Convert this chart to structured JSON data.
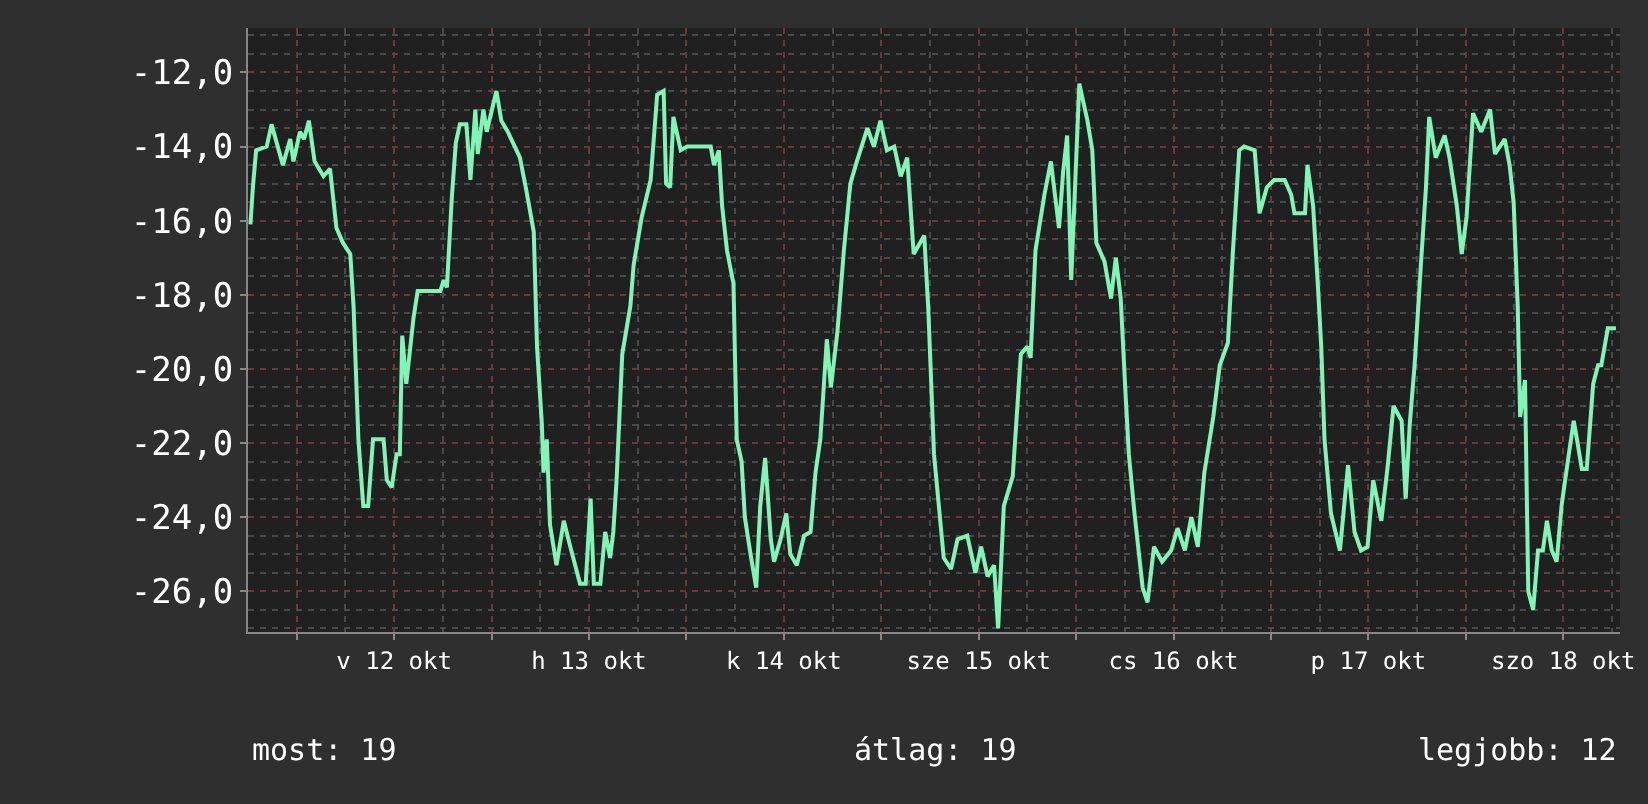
{
  "chart_data": {
    "type": "line",
    "x": [
      "--10-11T18:18",
      "--10-11T18:36",
      "--10-11T19:00",
      "--10-11T20:18",
      "--10-11T20:54",
      "--10-11T22:18",
      "--10-11T23:12",
      "--10-11T23:36",
      "--10-12T00:24",
      "--10-12T00:54",
      "--10-12T01:30",
      "--10-12T02:12",
      "--10-12T03:18",
      "--10-12T04:06",
      "--10-12T04:54",
      "--10-12T05:42",
      "--10-12T06:36",
      "--10-12T07:00",
      "--10-12T07:36",
      "--10-12T08:12",
      "--10-12T08:48",
      "--10-12T09:24",
      "--10-12T10:42",
      "--10-12T11:06",
      "--10-12T11:42",
      "--10-12T12:18",
      "--10-12T12:42",
      "--10-12T13:00",
      "--10-12T13:30",
      "--10-12T14:24",
      "--10-12T14:54",
      "--10-12T17:42",
      "--10-12T18:06",
      "--10-12T18:30",
      "--10-12T19:06",
      "--10-12T19:36",
      "--10-12T20:06",
      "--10-12T20:54",
      "--10-12T21:24",
      "--10-12T22:00",
      "--10-12T22:18",
      "--10-12T23:00",
      "--10-12T23:24",
      "--10-13T00:36",
      "--10-13T01:12",
      "--10-13T02:00",
      "--10-13T03:30",
      "--10-13T04:18",
      "--10-13T05:12",
      "--10-13T05:36",
      "--10-13T06:12",
      "--10-13T06:24",
      "--10-13T06:48",
      "--10-13T07:12",
      "--10-13T08:00",
      "--10-13T08:54",
      "--10-13T09:42",
      "--10-13T10:54",
      "--10-13T11:36",
      "--10-13T12:12",
      "--10-13T12:36",
      "--10-13T13:24",
      "--10-13T14:00",
      "--10-13T14:36",
      "--10-13T15:00",
      "--10-13T15:24",
      "--10-13T16:06",
      "--10-13T17:06",
      "--10-13T17:30",
      "--10-13T18:30",
      "--10-13T19:36",
      "--10-13T20:24",
      "--10-13T21:12",
      "--10-13T21:30",
      "--10-13T22:00",
      "--10-13T22:24",
      "--10-13T23:18",
      "--10-14T00:06",
      "--10-14T03:00",
      "--10-14T03:24",
      "--10-14T04:00",
      "--10-14T04:24",
      "--10-14T05:00",
      "--10-14T05:48",
      "--10-14T06:12",
      "--10-14T06:48",
      "--10-14T07:12",
      "--10-14T07:54",
      "--10-14T08:36",
      "--10-14T09:06",
      "--10-14T09:42",
      "--10-14T10:24",
      "--10-14T10:48",
      "--10-14T11:36",
      "--10-14T12:18",
      "--10-14T12:48",
      "--10-14T13:36",
      "--10-14T14:30",
      "--10-14T15:18",
      "--10-14T15:54",
      "--10-14T16:30",
      "--10-14T17:18",
      "--10-14T17:48",
      "--10-14T18:36",
      "--10-14T19:24",
      "--10-14T20:12",
      "--10-14T21:00",
      "--10-14T22:18",
      "--10-14T23:06",
      "--10-14T23:54",
      "--10-15T00:42",
      "--10-15T01:36",
      "--10-15T02:24",
      "--10-15T03:12",
      "--10-15T04:00",
      "--10-15T05:18",
      "--10-15T05:48",
      "--10-15T06:30",
      "--10-15T07:42",
      "--10-15T08:36",
      "--10-15T09:24",
      "--10-15T10:36",
      "--10-15T11:36",
      "--10-15T12:18",
      "--10-15T13:06",
      "--10-15T13:54",
      "--10-15T14:24",
      "--10-15T15:06",
      "--10-15T16:12",
      "--10-15T17:12",
      "--10-15T18:00",
      "--10-15T18:24",
      "--10-15T19:00",
      "--10-15T20:06",
      "--10-15T20:54",
      "--10-15T21:54",
      "--10-15T22:24",
      "--10-15T22:54",
      "--10-15T23:24",
      "--10-16T00:24",
      "--10-16T01:24",
      "--10-16T02:00",
      "--10-16T02:30",
      "--10-16T03:30",
      "--10-16T04:18",
      "--10-16T04:54",
      "--10-16T05:30",
      "--10-16T06:06",
      "--10-16T06:30",
      "--10-16T07:12",
      "--10-16T08:12",
      "--10-16T08:48",
      "--10-16T09:36",
      "--10-16T10:36",
      "--10-16T11:42",
      "--10-16T12:30",
      "--10-16T13:24",
      "--10-16T14:12",
      "--10-16T15:00",
      "--10-16T15:48",
      "--10-16T16:54",
      "--10-16T17:42",
      "--10-16T18:42",
      "--10-16T19:18",
      "--10-16T20:06",
      "--10-16T20:42",
      "--10-16T22:00",
      "--10-16T22:36",
      "--10-16T23:30",
      "--10-17T00:24",
      "--10-17T01:42",
      "--10-17T02:30",
      "--10-17T02:54",
      "--10-17T04:12",
      "--10-17T04:30",
      "--10-17T05:12",
      "--10-17T05:48",
      "--10-17T06:12",
      "--10-17T06:36",
      "--10-17T07:24",
      "--10-17T08:30",
      "--10-17T09:30",
      "--10-17T10:18",
      "--10-17T11:06",
      "--10-17T11:54",
      "--10-17T12:36",
      "--10-17T13:36",
      "--10-17T14:24",
      "--10-17T15:06",
      "--10-17T16:06",
      "--10-17T16:36",
      "--10-17T17:06",
      "--10-17T17:42",
      "--10-17T18:30",
      "--10-17T19:06",
      "--10-17T19:30",
      "--10-17T20:18",
      "--10-17T21:24",
      "--10-17T22:00",
      "--10-17T22:54",
      "--10-17T23:30",
      "--10-18T00:06",
      "--10-18T00:54",
      "--10-18T01:54",
      "--10-18T03:00",
      "--10-18T03:36",
      "--10-18T04:48",
      "--10-18T05:24",
      "--10-18T05:54",
      "--10-18T06:24",
      "--10-18T06:42",
      "--10-18T07:18",
      "--10-18T07:42",
      "--10-18T08:18",
      "--10-18T08:54",
      "--10-18T09:30",
      "--10-18T10:00",
      "--10-18T10:36",
      "--10-18T11:12",
      "--10-18T11:48",
      "--10-18T12:30",
      "--10-18T13:18",
      "--10-18T13:42",
      "--10-18T14:18",
      "--10-18T14:54",
      "--10-18T15:42",
      "--10-18T16:18",
      "--10-18T16:42",
      "--10-18T17:30",
      "--10-18T18:30"
    ],
    "series": [
      {
        "color": "#80f5b5",
        "values": [
          -16.1,
          -15.1,
          -14.1,
          -14.0,
          -13.4,
          -14.5,
          -13.8,
          -14.4,
          -13.6,
          -13.8,
          -13.3,
          -14.4,
          -14.8,
          -14.6,
          -16.2,
          -16.6,
          -16.9,
          -18.3,
          -21.9,
          -23.7,
          -23.7,
          -21.9,
          -21.9,
          -23.0,
          -23.2,
          -22.3,
          -22.3,
          -19.1,
          -20.4,
          -18.6,
          -17.9,
          -17.9,
          -17.6,
          -17.8,
          -15.4,
          -13.9,
          -13.4,
          -13.4,
          -14.9,
          -13.0,
          -14.2,
          -13.0,
          -13.6,
          -12.5,
          -13.3,
          -13.6,
          -14.3,
          -15.2,
          -16.3,
          -19.4,
          -21.5,
          -22.8,
          -21.9,
          -24.2,
          -25.3,
          -24.1,
          -24.8,
          -25.8,
          -25.8,
          -23.5,
          -25.8,
          -25.8,
          -24.4,
          -25.1,
          -24.4,
          -23.0,
          -19.6,
          -18.3,
          -17.2,
          -15.9,
          -14.9,
          -12.6,
          -12.5,
          -15.0,
          -15.1,
          -13.2,
          -14.1,
          -14.0,
          -14.0,
          -14.5,
          -14.1,
          -15.6,
          -16.8,
          -17.7,
          -21.9,
          -22.5,
          -24.0,
          -25.0,
          -25.9,
          -23.7,
          -22.4,
          -24.6,
          -25.2,
          -24.6,
          -23.9,
          -25.0,
          -25.3,
          -24.5,
          -24.4,
          -22.8,
          -21.9,
          -19.2,
          -20.5,
          -19.0,
          -16.8,
          -15.0,
          -14.4,
          -13.5,
          -14.0,
          -13.3,
          -14.1,
          -14.0,
          -14.8,
          -14.3,
          -16.9,
          -16.4,
          -18.4,
          -22.3,
          -25.1,
          -25.4,
          -24.6,
          -24.5,
          -25.5,
          -24.8,
          -25.6,
          -25.3,
          -27.0,
          -23.7,
          -22.9,
          -19.6,
          -19.4,
          -19.7,
          -16.8,
          -15.3,
          -14.4,
          -16.2,
          -14.7,
          -13.7,
          -17.6,
          -12.3,
          -13.3,
          -14.1,
          -16.6,
          -17.1,
          -18.1,
          -17.0,
          -18.1,
          -20.7,
          -22.3,
          -23.9,
          -25.9,
          -26.3,
          -24.8,
          -25.2,
          -24.9,
          -24.3,
          -24.9,
          -24.0,
          -24.8,
          -22.8,
          -21.3,
          -19.9,
          -19.3,
          -16.9,
          -14.1,
          -14.0,
          -14.1,
          -15.8,
          -15.1,
          -14.9,
          -14.9,
          -15.3,
          -15.8,
          -15.8,
          -14.5,
          -15.6,
          -17.8,
          -19.4,
          -21.9,
          -23.9,
          -24.9,
          -22.6,
          -24.4,
          -24.9,
          -24.8,
          -23.0,
          -24.1,
          -22.6,
          -21.0,
          -21.4,
          -23.5,
          -21.5,
          -19.9,
          -17.1,
          -15.1,
          -13.2,
          -14.3,
          -13.7,
          -14.3,
          -15.6,
          -16.9,
          -15.9,
          -13.1,
          -13.6,
          -13.0,
          -14.2,
          -13.8,
          -14.5,
          -15.5,
          -18.3,
          -21.3,
          -20.3,
          -26.0,
          -26.5,
          -24.9,
          -24.9,
          -24.1,
          -24.9,
          -25.2,
          -23.7,
          -22.6,
          -21.4,
          -21.9,
          -22.7,
          -22.7,
          -20.4,
          -19.9,
          -19.9,
          -18.9,
          -18.9
        ]
      }
    ],
    "xlim": [
      "--10-11T18:00",
      "--10-18T19:00"
    ],
    "xticks": [
      {
        "value": "--10-12T00:00",
        "label": null
      },
      {
        "value": "--10-12T12:00",
        "label": "v 12 okt"
      },
      {
        "value": "--10-13T00:00",
        "label": null
      },
      {
        "value": "--10-13T12:00",
        "label": "h 13 okt"
      },
      {
        "value": "--10-14T00:00",
        "label": null
      },
      {
        "value": "--10-14T12:00",
        "label": "k 14 okt"
      },
      {
        "value": "--10-15T00:00",
        "label": null
      },
      {
        "value": "--10-15T12:00",
        "label": "sze 15 okt"
      },
      {
        "value": "--10-16T00:00",
        "label": null
      },
      {
        "value": "--10-16T12:00",
        "label": "cs 16 okt"
      },
      {
        "value": "--10-17T00:00",
        "label": null
      },
      {
        "value": "--10-17T12:00",
        "label": "p 17 okt"
      },
      {
        "value": "--10-18T00:00",
        "label": null
      },
      {
        "value": "--10-18T12:00",
        "label": "szo 18 okt"
      }
    ],
    "ylim": [
      -27.1,
      -10.8
    ],
    "yticks": [
      {
        "value": -26,
        "label": "-26,0"
      },
      {
        "value": -24,
        "label": "-24,0"
      },
      {
        "value": -22,
        "label": "-22,0"
      },
      {
        "value": -20,
        "label": "-20,0"
      },
      {
        "value": -18,
        "label": "-18,0"
      },
      {
        "value": -16,
        "label": "-16,0"
      },
      {
        "value": -14,
        "label": "-14,0"
      },
      {
        "value": -12,
        "label": "-12,0"
      }
    ],
    "grid": true,
    "marker": "none",
    "line_style": "solid",
    "annotations": [
      "most: 19",
      "átlag: 19",
      "legjobb: 12"
    ]
  }
}
